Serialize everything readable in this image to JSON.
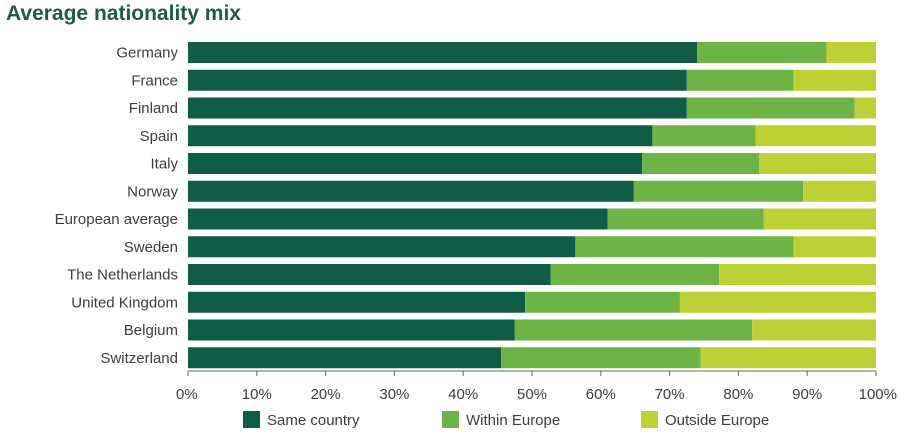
{
  "chart_data": {
    "type": "bar",
    "orientation": "horizontal",
    "stacked": true,
    "title": "Average nationality mix",
    "categories": [
      "Germany",
      "France",
      "Finland",
      "Spain",
      "Italy",
      "Norway",
      "European average",
      "Sweden",
      "The Netherlands",
      "United Kingdom",
      "Belgium",
      "Switzerland"
    ],
    "series": [
      {
        "name": "Same country",
        "color": "#105c46",
        "values": [
          74,
          72.5,
          72.5,
          67.5,
          66,
          64.8,
          61,
          56.3,
          52.7,
          49,
          47.5,
          45.5
        ]
      },
      {
        "name": "Within Europe",
        "color": "#6db345",
        "values": [
          18.8,
          15.5,
          24.4,
          15,
          17,
          24.6,
          22.7,
          31.7,
          24.5,
          22.5,
          34.5,
          29
        ]
      },
      {
        "name": "Outside Europe",
        "color": "#bdd136",
        "values": [
          7.2,
          12,
          3.1,
          17.5,
          17,
          10.6,
          16.3,
          12,
          22.8,
          28.5,
          18,
          25.5
        ]
      }
    ],
    "xlim": [
      0,
      100
    ],
    "xticks": [
      "0%",
      "10%",
      "20%",
      "30%",
      "40%",
      "50%",
      "60%",
      "70%",
      "80%",
      "90%",
      "100%"
    ],
    "legend_position": "bottom",
    "grid": false
  }
}
